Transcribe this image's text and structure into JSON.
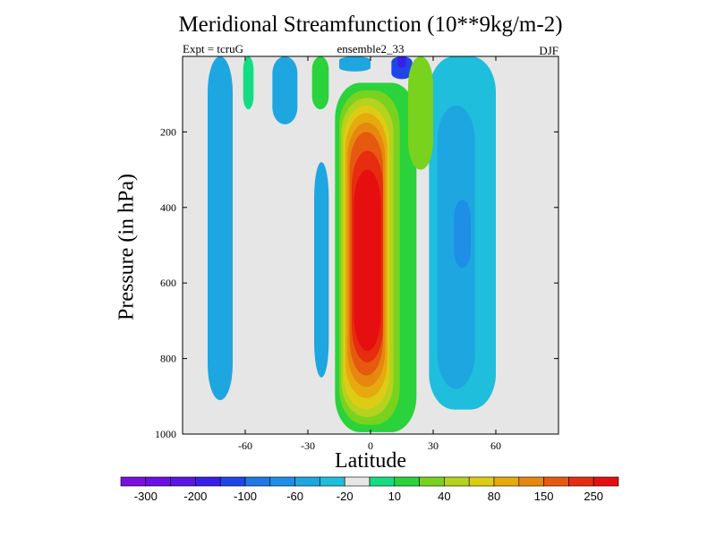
{
  "chart_data": {
    "type": "contour",
    "title": "Meridional Streamfunction (10**9kg/m-2)",
    "subtitle_left": "Expt = tcruG",
    "subtitle_center": "ensemble2_33",
    "subtitle_right": "DJF",
    "xlabel": "Latitude",
    "ylabel": "Pressure (in hPa)",
    "xlim": [
      -90,
      90
    ],
    "ylim": [
      1000,
      0
    ],
    "x_ticks": [
      {
        "value": -60,
        "label": "-60"
      },
      {
        "value": -30,
        "label": "-30"
      },
      {
        "value": 0,
        "label": "0"
      },
      {
        "value": 30,
        "label": "30"
      },
      {
        "value": 60,
        "label": "60"
      }
    ],
    "y_ticks": [
      {
        "value": 200,
        "label": "200"
      },
      {
        "value": 400,
        "label": "400"
      },
      {
        "value": 600,
        "label": "600"
      },
      {
        "value": 800,
        "label": "800"
      },
      {
        "value": 1000,
        "label": "1000"
      }
    ],
    "colorbar": {
      "colors": [
        "#7a0fe0",
        "#6a0fe6",
        "#5a14e8",
        "#3a1ee8",
        "#1e46e6",
        "#1e78e6",
        "#1e8ee6",
        "#1ea6e0",
        "#1ebedc",
        "#e6e6e6",
        "#14dc82",
        "#2ad23c",
        "#78d21e",
        "#b4d21e",
        "#dccd14",
        "#e6aa0f",
        "#e6880f",
        "#e65a0f",
        "#e62d0f",
        "#e60f0f"
      ],
      "labels": [
        {
          "boundary": 1,
          "text": "-300"
        },
        {
          "boundary": 3,
          "text": "-200"
        },
        {
          "boundary": 5,
          "text": "-100"
        },
        {
          "boundary": 7,
          "text": "-60"
        },
        {
          "boundary": 9,
          "text": "-20"
        },
        {
          "boundary": 11,
          "text": "10"
        },
        {
          "boundary": 13,
          "text": "40"
        },
        {
          "boundary": 15,
          "text": "80"
        },
        {
          "boundary": 17,
          "text": "150"
        },
        {
          "boundary": 19,
          "text": "250"
        }
      ]
    },
    "background_color": "#e6e6e6",
    "features": [
      {
        "name": "main-positive-cell",
        "lat": [
          -15,
          10
        ],
        "p": [
          70,
          990
        ],
        "levels": [
          {
            "color": "#2ad23c",
            "lat": [
              -17,
              22
            ],
            "p": [
              70,
              995
            ]
          },
          {
            "color": "#78d21e",
            "lat": [
              -15,
              14
            ],
            "p": [
              90,
              975
            ]
          },
          {
            "color": "#b4d21e",
            "lat": [
              -14,
              11
            ],
            "p": [
              110,
              955
            ]
          },
          {
            "color": "#dccd14",
            "lat": [
              -13,
              9
            ],
            "p": [
              130,
              935
            ]
          },
          {
            "color": "#e6aa0f",
            "lat": [
              -12,
              8
            ],
            "p": [
              150,
              905
            ]
          },
          {
            "color": "#e6880f",
            "lat": [
              -11,
              7
            ],
            "p": [
              175,
              875
            ]
          },
          {
            "color": "#e65a0f",
            "lat": [
              -10,
              6
            ],
            "p": [
              200,
              845
            ]
          },
          {
            "color": "#e62d0f",
            "lat": [
              -9,
              6
            ],
            "p": [
              250,
              810
            ]
          },
          {
            "color": "#e60f0f",
            "lat": [
              -8,
              5
            ],
            "p": [
              300,
              780
            ]
          }
        ]
      },
      {
        "name": "sh-negative-cell",
        "lat": [
          -78,
          -66
        ],
        "p": [
          0,
          910
        ],
        "color": "#1ea6e0"
      },
      {
        "name": "sh-mid-negative-cell",
        "lat": [
          -47,
          -35
        ],
        "p": [
          0,
          180
        ],
        "color": "#1ea6e0"
      },
      {
        "name": "sh-neg-lower-cell",
        "lat": [
          -27,
          -20
        ],
        "p": [
          280,
          850
        ],
        "color": "#1ea6e0"
      },
      {
        "name": "nh-negative-cell",
        "lat": [
          30,
          58
        ],
        "p": [
          0,
          930
        ],
        "levels": [
          {
            "color": "#1ebedc",
            "lat": [
              28,
              60
            ],
            "p": [
              0,
              935
            ]
          },
          {
            "color": "#1ea6e0",
            "lat": [
              32,
              50
            ],
            "p": [
              130,
              880
            ]
          },
          {
            "color": "#1e8ee6",
            "lat": [
              40,
              48
            ],
            "p": [
              380,
              560
            ]
          }
        ]
      },
      {
        "name": "tropical-upper-negative",
        "lat": [
          -15,
          20
        ],
        "p": [
          0,
          60
        ],
        "levels": [
          {
            "color": "#1ea6e0",
            "lat": [
              -15,
              0
            ],
            "p": [
              0,
              40
            ]
          },
          {
            "color": "#1e46e6",
            "lat": [
              10,
              20
            ],
            "p": [
              0,
              60
            ]
          },
          {
            "color": "#3a1ee8",
            "lat": [
              13,
              17
            ],
            "p": [
              0,
              30
            ]
          }
        ]
      },
      {
        "name": "nh-upper-positive",
        "lat": [
          18,
          30
        ],
        "p": [
          0,
          300
        ],
        "color": "#78d21e"
      },
      {
        "name": "sh-upper-positive",
        "lat": [
          -28,
          -20
        ],
        "p": [
          0,
          140
        ],
        "color": "#2ad23c"
      },
      {
        "name": "sh-small-positive",
        "lat": [
          -61,
          -56
        ],
        "p": [
          0,
          140
        ],
        "color": "#14dc82"
      }
    ]
  }
}
